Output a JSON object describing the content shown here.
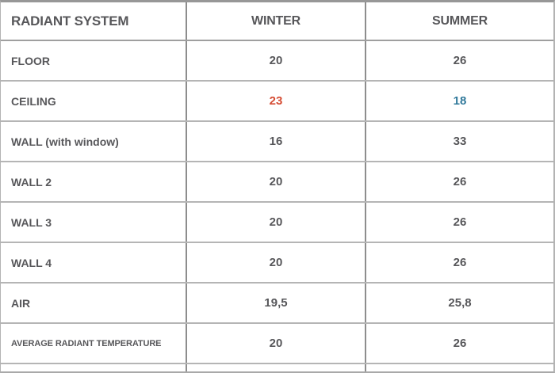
{
  "table": {
    "columns": {
      "system": "RADIANT SYSTEM",
      "winter": "WINTER",
      "summer": "SUMMER"
    },
    "rows": [
      {
        "label": "FLOOR",
        "winter": "20",
        "summer": "26"
      },
      {
        "label": "CEILING",
        "winter": "23",
        "summer": "18"
      },
      {
        "label": "WALL (with window)",
        "winter": "16",
        "summer": "33"
      },
      {
        "label": "WALL 2",
        "winter": "20",
        "summer": "26"
      },
      {
        "label": "WALL 3",
        "winter": "20",
        "summer": "26"
      },
      {
        "label": "WALL 4",
        "winter": "20",
        "summer": "26"
      },
      {
        "label": "AIR",
        "winter": "19,5",
        "summer": "25,8"
      },
      {
        "label": "AVERAGE RADIANT TEMPERATURE",
        "winter": "20",
        "summer": "26"
      }
    ],
    "colors": {
      "text": "#57575a",
      "ceiling_winter_highlight": "#d54c33",
      "ceiling_summer_highlight": "#2f789a",
      "horizontal_rule": "#b5b5b5",
      "vertical_rule": "#8d8d8d",
      "outer_top_border": "#979797"
    }
  },
  "chart_data": {
    "type": "table",
    "title": "",
    "columns": [
      "RADIANT SYSTEM",
      "WINTER",
      "SUMMER"
    ],
    "rows": [
      [
        "FLOOR",
        20,
        26
      ],
      [
        "CEILING",
        23,
        18
      ],
      [
        "WALL (with window)",
        16,
        33
      ],
      [
        "WALL 2",
        20,
        26
      ],
      [
        "WALL 3",
        20,
        26
      ],
      [
        "WALL 4",
        20,
        26
      ],
      [
        "AIR",
        19.5,
        25.8
      ],
      [
        "AVERAGE RADIANT TEMPERATURE",
        20,
        26
      ]
    ],
    "annotations": "CEILING winter value rendered in red (#d54c33); CEILING summer value rendered in blue (#2f789a); decimal commas used for AIR row values"
  }
}
